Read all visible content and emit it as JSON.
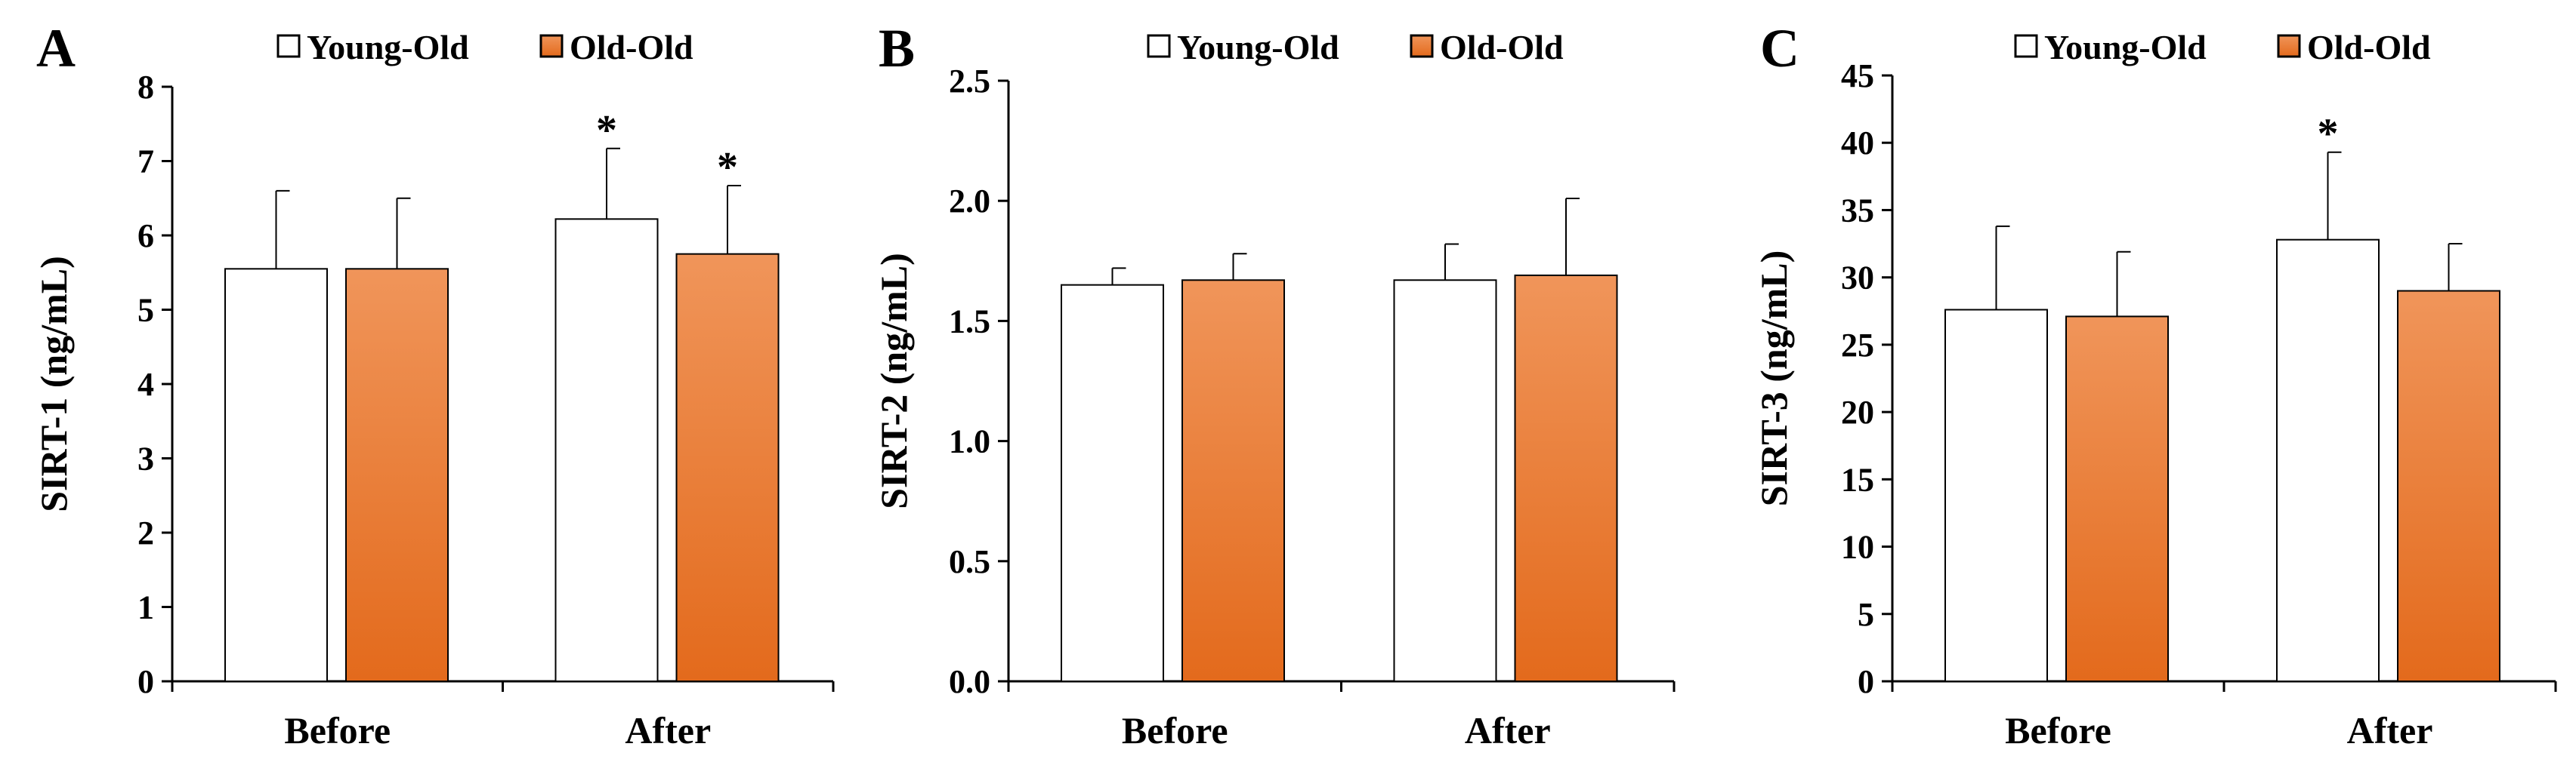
{
  "colors": {
    "young_fill": "#ffffff",
    "old_top": "#f0955a",
    "old_bottom": "#e36a1c",
    "stroke": "#000000"
  },
  "legend": {
    "young_label": "Young-Old",
    "old_label": "Old-Old"
  },
  "chart_data": [
    {
      "panel": "A",
      "type": "bar",
      "ylabel": "SIRT-1 (ng/mL)",
      "categories": [
        "Before",
        "After"
      ],
      "ylim": [
        0,
        8
      ],
      "yticks": [
        "0",
        "1",
        "2",
        "3",
        "4",
        "5",
        "6",
        "7",
        "8"
      ],
      "series": [
        {
          "name": "Young-Old",
          "values": [
            5.55,
            6.22
          ],
          "errors": [
            1.05,
            0.95
          ],
          "sig": [
            "",
            "*"
          ]
        },
        {
          "name": "Old-Old",
          "values": [
            5.55,
            5.75
          ],
          "errors": [
            0.95,
            0.92
          ],
          "sig": [
            "",
            "*"
          ]
        }
      ]
    },
    {
      "panel": "B",
      "type": "bar",
      "ylabel": "SIRT-2 (ng/mL)",
      "categories": [
        "Before",
        "After"
      ],
      "ylim": [
        0,
        2.5
      ],
      "yticks": [
        "0.0",
        "0.5",
        "1.0",
        "1.5",
        "2.0",
        "2.5"
      ],
      "series": [
        {
          "name": "Young-Old",
          "values": [
            1.65,
            1.67
          ],
          "errors": [
            0.07,
            0.15
          ],
          "sig": [
            "",
            ""
          ]
        },
        {
          "name": "Old-Old",
          "values": [
            1.67,
            1.69
          ],
          "errors": [
            0.11,
            0.32
          ],
          "sig": [
            "",
            ""
          ]
        }
      ]
    },
    {
      "panel": "C",
      "type": "bar",
      "ylabel": "SIRT-3 (ng/mL)",
      "categories": [
        "Before",
        "After"
      ],
      "ylim": [
        0,
        45
      ],
      "yticks": [
        "0",
        "5",
        "10",
        "15",
        "20",
        "25",
        "30",
        "35",
        "40",
        "45"
      ],
      "series": [
        {
          "name": "Young-Old",
          "values": [
            27.6,
            32.8
          ],
          "errors": [
            6.2,
            6.5
          ],
          "sig": [
            "",
            "*"
          ]
        },
        {
          "name": "Old-Old",
          "values": [
            27.1,
            29.0
          ],
          "errors": [
            4.8,
            3.5
          ],
          "sig": [
            "",
            ""
          ]
        }
      ]
    }
  ]
}
